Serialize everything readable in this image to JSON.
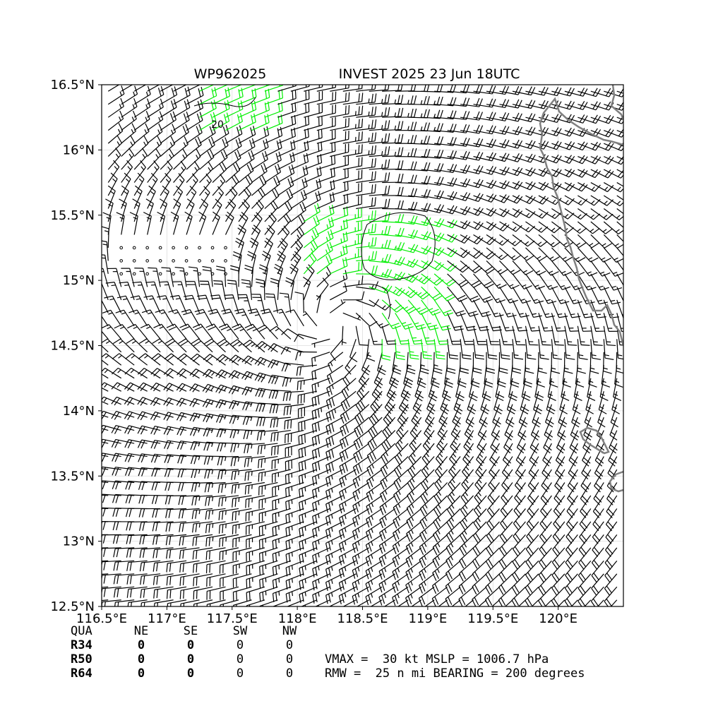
{
  "title": {
    "storm_id": "WP962025",
    "storm_info": "INVEST 2025 23 Jun 18UTC"
  },
  "chart_data": {
    "type": "wind-barb-map",
    "lon_range": [
      116.5,
      120.5
    ],
    "lat_range": [
      12.5,
      16.5
    ],
    "x_ticks": [
      116.5,
      117.0,
      117.5,
      118.0,
      118.5,
      119.0,
      119.5,
      120.0
    ],
    "x_tick_labels": [
      "116.5°E",
      "117°E",
      "117.5°E",
      "118°E",
      "118.5°E",
      "119°E",
      "119.5°E",
      "120°E"
    ],
    "y_ticks": [
      12.5,
      13.0,
      13.5,
      14.0,
      14.5,
      15.0,
      15.5,
      16.0,
      16.5
    ],
    "y_tick_labels": [
      "12.5°N",
      "13°N",
      "13.5°N",
      "14°N",
      "14.5°N",
      "15°N",
      "15.5°N",
      "16°N",
      "16.5°N"
    ],
    "grid": true,
    "circulation_center": {
      "lon": 118.28,
      "lat": 14.62
    },
    "contour_label": "20",
    "colors": {
      "barb_default": "#000000",
      "barb_strong": "#00ee00",
      "coastline": "#808080",
      "contour": "#000000"
    }
  },
  "table": {
    "header": [
      "QUA",
      "NE",
      "SE",
      "SW",
      "NW"
    ],
    "rows": [
      {
        "label": "R34",
        "values": [
          "0",
          "0",
          "0",
          "0"
        ]
      },
      {
        "label": "R50",
        "values": [
          "0",
          "0",
          "0",
          "0"
        ]
      },
      {
        "label": "R64",
        "values": [
          "0",
          "0",
          "0",
          "0"
        ]
      }
    ]
  },
  "stats": {
    "line1": "VMAX =  30 kt MSLP = 1006.7 hPa",
    "line2": "RMW =  25 n mi BEARING = 200 degrees"
  }
}
